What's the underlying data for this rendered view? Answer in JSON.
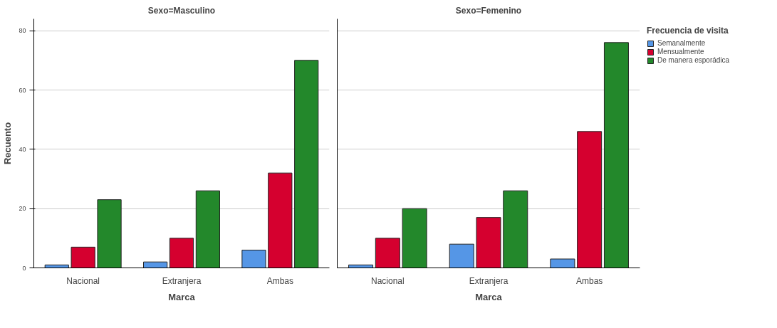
{
  "chart_data": [
    {
      "type": "bar",
      "title": "Sexo=Masculino",
      "xlabel": "Marca",
      "ylabel": "Recuento",
      "categories": [
        "Nacional",
        "Extranjera",
        "Ambas"
      ],
      "series": [
        {
          "color": "#5596e6",
          "values": [
            1,
            2,
            6
          ]
        },
        {
          "color": "#d5002f",
          "values": [
            7,
            10,
            32
          ]
        },
        {
          "color": "#23882b",
          "values": [
            23,
            26,
            70
          ]
        }
      ],
      "ylim": [
        0,
        84
      ],
      "yticks": [
        0,
        20,
        40,
        60,
        80
      ],
      "grid": "y"
    },
    {
      "type": "bar",
      "title": "Sexo=Femenino",
      "xlabel": "Marca",
      "categories": [
        "Nacional",
        "Extranjera",
        "Ambas"
      ],
      "legend_title": "Frecuencia de visita",
      "series": [
        {
          "name": "Semanalmente",
          "color": "#5596e6",
          "values": [
            1,
            8,
            3
          ]
        },
        {
          "name": "Mensualmente",
          "color": "#d5002f",
          "values": [
            10,
            17,
            46
          ]
        },
        {
          "name": "De manera esporádica",
          "color": "#23882b",
          "values": [
            20,
            26,
            76
          ]
        }
      ],
      "ylim": [
        0,
        84
      ],
      "yticks": [
        0,
        20,
        40,
        60,
        80
      ],
      "grid": "y",
      "tick_labels": "x",
      "legend": "right"
    }
  ]
}
